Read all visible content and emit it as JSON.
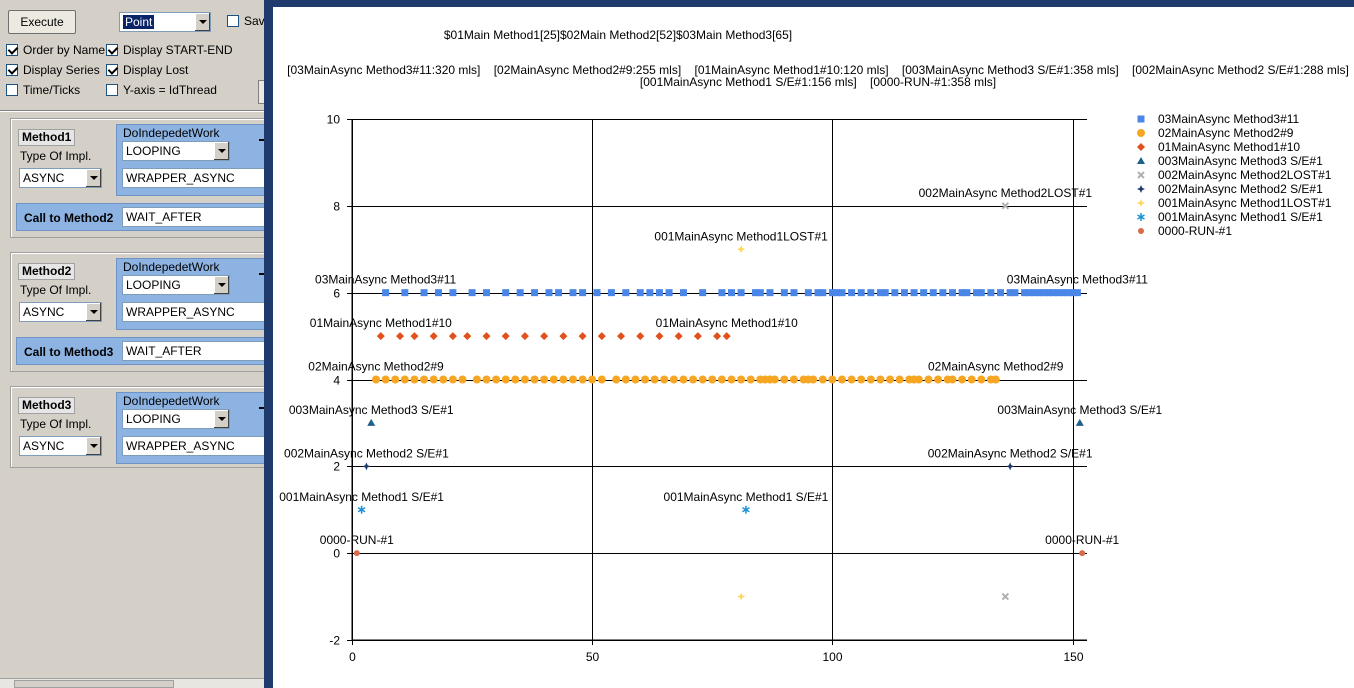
{
  "toolbar": {
    "execute_label": "Execute",
    "chart_type_value": "Point",
    "save_label": "Sav"
  },
  "options": [
    {
      "label": "Order by Name",
      "checked": true
    },
    {
      "label": "Display START-END",
      "checked": true
    },
    {
      "label": "Display Series",
      "checked": true
    },
    {
      "label": "Display Lost",
      "checked": true
    },
    {
      "label": "Time/Ticks",
      "checked": false
    },
    {
      "label": "Y-axis = IdThread",
      "checked": false
    }
  ],
  "methods": [
    {
      "name": "Method1",
      "type_label": "Type Of Impl.",
      "type_value": "ASYNC",
      "work_header": "DoIndepedetWork",
      "work_value": "LOOPING",
      "wrapper_value": "WRAPPER_ASYNC",
      "call_label": "Call to Method2",
      "call_value": "WAIT_AFTER"
    },
    {
      "name": "Method2",
      "type_label": "Type Of Impl.",
      "type_value": "ASYNC",
      "work_header": "DoIndepedetWork",
      "work_value": "LOOPING",
      "wrapper_value": "WRAPPER_ASYNC",
      "call_label": "Call to Method3",
      "call_value": "WAIT_AFTER"
    },
    {
      "name": "Method3",
      "type_label": "Type Of Impl.",
      "type_value": "ASYNC",
      "work_header": "DoIndepedetWork",
      "work_value": "LOOPING",
      "wrapper_value": "WRAPPER_ASYNC"
    }
  ],
  "chart_data": {
    "type": "scatter",
    "title": "$01Main Method1[25]$02Main Method2[52]$03Main Method3[65]",
    "subtitle_line1": "[03MainAsync Method3#11:320 mls]    [02MainAsync Method2#9:255 mls]    [01MainAsync Method1#10:120 mls]    [003MainAsync Method3 S/E#1:358 mls]    [002MainAsync Method2 S/E#1:288 mls]",
    "subtitle_line2": "[001MainAsync Method1 S/E#1:156 mls]    [0000-RUN-#1:358 mls]",
    "xlim": [
      0,
      153
    ],
    "ylim": [
      -2,
      10
    ],
    "x_ticks": [
      0,
      50,
      100,
      150
    ],
    "y_ticks": [
      -2,
      0,
      2,
      4,
      6,
      8,
      10
    ],
    "grid": true,
    "legend_position": "top-right",
    "series": [
      {
        "name": "03MainAsync Method3#11",
        "marker": "square",
        "color": "#4a86e8",
        "x": [
          7,
          11,
          15,
          18,
          21,
          25,
          28,
          32,
          35,
          38,
          41,
          43,
          46,
          48,
          51,
          54,
          57,
          60,
          62,
          64,
          66,
          69,
          73,
          77,
          79,
          81,
          84,
          85,
          87,
          90,
          92,
          95,
          97,
          98,
          100,
          101,
          102,
          104,
          106,
          108,
          110,
          111,
          113,
          115,
          117,
          119,
          121,
          123,
          125,
          127,
          128,
          130,
          131,
          133,
          135,
          137,
          138,
          140,
          141,
          142,
          143,
          144,
          145,
          146,
          147,
          148,
          149,
          150,
          151
        ],
        "y": 6,
        "labels": [
          {
            "text": "03MainAsync Method3#11",
            "x": 7
          },
          {
            "text": "03MainAsync Method3#11",
            "x": 151
          }
        ]
      },
      {
        "name": "02MainAsync Method2#9",
        "marker": "circle",
        "color": "#f6a623",
        "x": [
          5,
          7,
          9,
          11,
          13,
          15,
          17,
          19,
          21,
          23,
          26,
          28,
          30,
          32,
          34,
          36,
          38,
          40,
          42,
          44,
          46,
          48,
          50,
          52,
          55,
          57,
          59,
          61,
          63,
          65,
          67,
          69,
          71,
          73,
          75,
          77,
          79,
          81,
          83,
          85,
          86,
          87,
          88,
          90,
          92,
          94,
          95,
          96,
          98,
          100,
          102,
          104,
          106,
          108,
          110,
          112,
          114,
          116,
          117,
          118,
          120,
          122,
          124,
          125,
          127,
          129,
          131,
          133,
          134
        ],
        "y": 4,
        "labels": [
          {
            "text": "02MainAsync Method2#9",
            "x": 5
          },
          {
            "text": "02MainAsync Method2#9",
            "x": 134
          }
        ]
      },
      {
        "name": "01MainAsync Method1#10",
        "marker": "diamond",
        "color": "#e0511b",
        "x": [
          6,
          10,
          13,
          17,
          21,
          24,
          28,
          32,
          36,
          40,
          44,
          48,
          52,
          56,
          60,
          64,
          68,
          72,
          76,
          78
        ],
        "y": 5,
        "labels": [
          {
            "text": "01MainAsync Method1#10",
            "x": 6
          },
          {
            "text": "01MainAsync Method1#10",
            "x": 78
          }
        ]
      },
      {
        "name": "003MainAsync Method3 S/E#1",
        "marker": "triangle",
        "color": "#1f5f8b",
        "x": [
          4,
          151.5
        ],
        "y": 3,
        "labels": [
          {
            "text": "003MainAsync Method3 S/E#1",
            "x": 4
          },
          {
            "text": "003MainAsync Method3 S/E#1",
            "x": 151.5
          }
        ]
      },
      {
        "name": "002MainAsync Method2LOST#1",
        "marker": "x",
        "color": "#b0b0b0",
        "points": [
          [
            136,
            8
          ],
          [
            136,
            -1
          ]
        ],
        "labels": [
          {
            "text": "002MainAsync Method2LOST#1",
            "x": 136,
            "y": 8
          }
        ]
      },
      {
        "name": "002MainAsync Method2 S/E#1",
        "marker": "star4",
        "color": "#1f3b6e",
        "x": [
          3,
          137
        ],
        "y": 2,
        "labels": [
          {
            "text": "002MainAsync Method2 S/E#1",
            "x": 3
          },
          {
            "text": "002MainAsync Method2 S/E#1",
            "x": 137
          }
        ]
      },
      {
        "name": "001MainAsync Method1LOST#1",
        "marker": "star4",
        "color": "#ffd75e",
        "points": [
          [
            81,
            7
          ],
          [
            81,
            -1
          ]
        ],
        "labels": [
          {
            "text": "001MainAsync Method1LOST#1",
            "x": 81,
            "y": 7
          }
        ]
      },
      {
        "name": "001MainAsync Method1 S/E#1",
        "marker": "asterisk",
        "color": "#1e90d6",
        "x": [
          2,
          82
        ],
        "y": 1,
        "labels": [
          {
            "text": "001MainAsync Method1 S/E#1",
            "x": 2
          },
          {
            "text": "001MainAsync Method1 S/E#1",
            "x": 82
          }
        ]
      },
      {
        "name": "0000-RUN-#1",
        "marker": "circle-small",
        "color": "#d96b4a",
        "x": [
          1,
          152
        ],
        "y": 0,
        "labels": [
          {
            "text": "0000-RUN-#1",
            "x": 1
          },
          {
            "text": "0000-RUN-#1",
            "x": 152
          }
        ]
      }
    ]
  }
}
